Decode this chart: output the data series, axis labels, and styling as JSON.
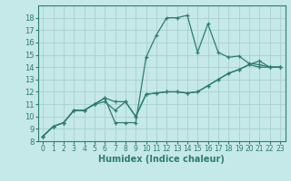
{
  "xlabel": "Humidex (Indice chaleur)",
  "xlim": [
    -0.5,
    23.5
  ],
  "ylim": [
    8,
    19
  ],
  "xticks": [
    0,
    1,
    2,
    3,
    4,
    5,
    6,
    7,
    8,
    9,
    10,
    11,
    12,
    13,
    14,
    15,
    16,
    17,
    18,
    19,
    20,
    21,
    22,
    23
  ],
  "yticks": [
    8,
    9,
    10,
    11,
    12,
    13,
    14,
    15,
    16,
    17,
    18
  ],
  "background_color": "#c5e8e8",
  "grid_color": "#aacfcf",
  "line_color": "#2e7d6e",
  "lines": [
    {
      "x": [
        0,
        1,
        2,
        3,
        4,
        5,
        6,
        7,
        8,
        9,
        10,
        11,
        12,
        13,
        14,
        15,
        16,
        17,
        18,
        19,
        20,
        21,
        22,
        23
      ],
      "y": [
        8.4,
        9.2,
        9.5,
        10.5,
        10.5,
        11.0,
        11.5,
        9.5,
        9.5,
        9.5,
        14.8,
        16.6,
        18.0,
        18.0,
        18.2,
        15.2,
        17.5,
        15.2,
        14.8,
        14.9,
        14.3,
        14.2,
        14.0,
        14.0
      ]
    },
    {
      "x": [
        0,
        1,
        2,
        3,
        4,
        5,
        6,
        7,
        8,
        9,
        10,
        11,
        12,
        13,
        14,
        15,
        16,
        17,
        18,
        19,
        20,
        21,
        22,
        23
      ],
      "y": [
        8.4,
        9.2,
        9.5,
        10.5,
        10.5,
        11.0,
        11.2,
        10.5,
        11.2,
        10.0,
        11.8,
        11.9,
        12.0,
        12.0,
        11.9,
        12.0,
        12.5,
        13.0,
        13.5,
        13.8,
        14.2,
        14.5,
        14.0,
        14.0
      ]
    },
    {
      "x": [
        0,
        1,
        2,
        3,
        4,
        5,
        6,
        7,
        8,
        9,
        10,
        11,
        12,
        13,
        14,
        15,
        16,
        17,
        18,
        19,
        20,
        21,
        22,
        23
      ],
      "y": [
        8.4,
        9.2,
        9.5,
        10.5,
        10.5,
        11.0,
        11.5,
        11.2,
        11.2,
        10.0,
        11.8,
        11.9,
        12.0,
        12.0,
        11.9,
        12.0,
        12.5,
        13.0,
        13.5,
        13.8,
        14.2,
        14.0,
        14.0,
        14.0
      ]
    }
  ]
}
